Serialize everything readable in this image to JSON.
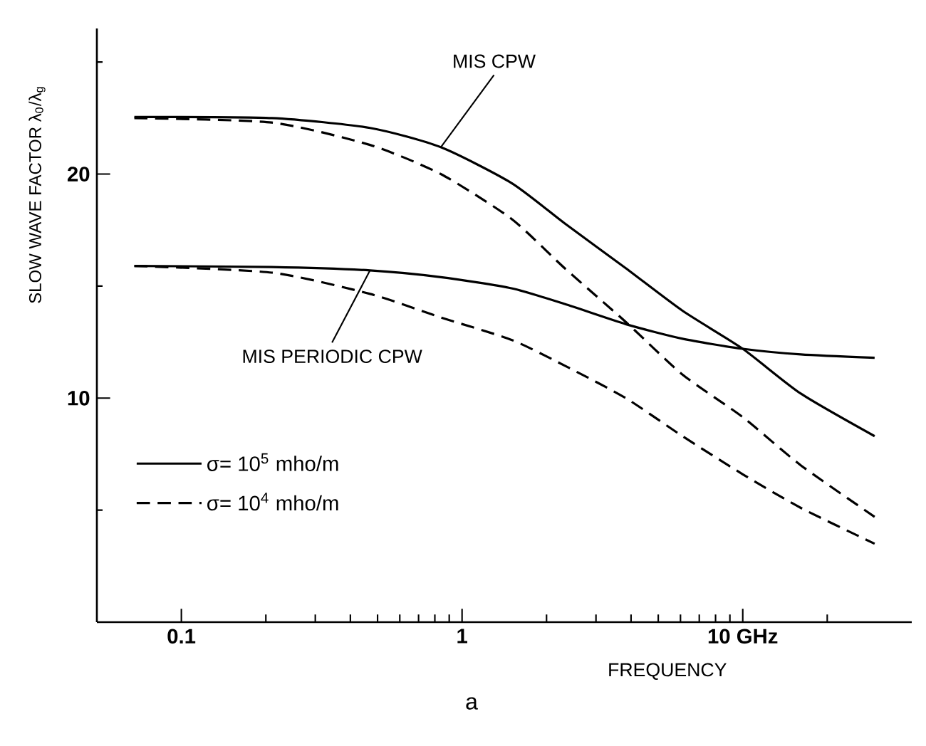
{
  "chart_data": {
    "type": "line",
    "xlabel": "FREQUENCY",
    "ylabel": "SLOW WAVE FACTOR   λ$_{0}$/λ$_{g}$",
    "x": [
      0.068,
      0.21,
      0.47,
      0.84,
      1.5,
      2.32,
      3.83,
      6.1,
      10,
      16.1,
      29.5
    ],
    "series": [
      {
        "name": "σ= 10$^{5}$ mho/m",
        "color": "#000000",
        "line_style": "solid",
        "values": [
          22.55,
          22.5,
          22.06,
          21.2,
          19.6,
          17.8,
          15.8,
          13.9,
          12.2,
          10.2,
          8.3
        ]
      },
      {
        "name": "σ= 10$^{4}$ mho/m",
        "color": "#000000",
        "line_style": "dashed",
        "values": [
          22.5,
          22.3,
          21.3,
          20.0,
          18.0,
          15.8,
          13.4,
          11.05,
          9.15,
          7.0,
          4.7
        ]
      },
      {
        "color": "#000000",
        "line_style": "solid",
        "values": [
          15.9,
          15.85,
          15.7,
          15.4,
          14.9,
          14.2,
          13.3,
          12.65,
          12.2,
          11.95,
          11.8
        ]
      },
      {
        "color": "#000000",
        "line_style": "dashed",
        "values": [
          15.9,
          15.6,
          14.65,
          13.6,
          12.6,
          11.45,
          10.0,
          8.3,
          6.6,
          5.1,
          3.5
        ]
      }
    ],
    "log": "x",
    "xlim": [
      0.05,
      40
    ],
    "ylim": [
      0,
      26.5
    ],
    "xticks": [
      {
        "value": 0.1,
        "label": "0.1"
      },
      {
        "value": 0.2,
        "label": null
      },
      {
        "value": 0.3,
        "label": null
      },
      {
        "value": 0.4,
        "label": null
      },
      {
        "value": 0.5,
        "label": null
      },
      {
        "value": 0.6,
        "label": null
      },
      {
        "value": 0.7,
        "label": null
      },
      {
        "value": 0.8,
        "label": null
      },
      {
        "value": 0.9,
        "label": null
      },
      1,
      {
        "value": 2,
        "label": null
      },
      {
        "value": 3,
        "label": null
      },
      {
        "value": 4,
        "label": null
      },
      {
        "value": 5,
        "label": null
      },
      {
        "value": 6,
        "label": null
      },
      {
        "value": 7,
        "label": null
      },
      {
        "value": 8,
        "label": null
      },
      {
        "value": 9,
        "label": null
      },
      {
        "value": 10,
        "label": "10 GHz"
      },
      {
        "value": 20,
        "label": null
      }
    ],
    "yticks": [
      {
        "value": 5,
        "label": null
      },
      10,
      {
        "value": 15,
        "label": null
      },
      20,
      {
        "value": 25,
        "label": null
      }
    ],
    "grid": false,
    "legend": "bottom left",
    "annotations": [
      {
        "text": "MIS CPW",
        "x": 0.84,
        "y": 21.2
      },
      {
        "text": "MIS PERIODIC CPW",
        "x": 0.47,
        "y": 15.7
      },
      "a"
    ]
  }
}
